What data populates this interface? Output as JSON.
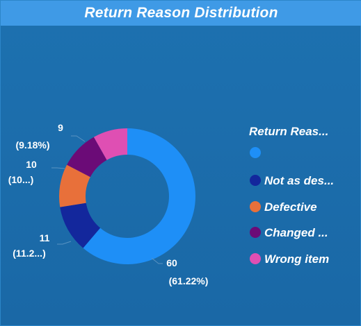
{
  "title": "Return Reason Distribution",
  "colors": {
    "background": "#1b6aa8",
    "title_bar": "#3f9ae6"
  },
  "chart_data": {
    "type": "pie",
    "donut": true,
    "legend_title": "Return Reas...",
    "legend_position": "right",
    "slices": [
      {
        "legend_label": "",
        "value": 60,
        "percent_label": "(61.22%)",
        "color": "#1e8ff7"
      },
      {
        "legend_label": "Not as des...",
        "value": 11,
        "percent_label": "(11.2...)",
        "color": "#13279c"
      },
      {
        "legend_label": "Defective",
        "value": 10,
        "percent_label": "(10...)",
        "color": "#e8703a"
      },
      {
        "legend_label": "Changed ...",
        "value": 9,
        "percent_label": "(9.18%)",
        "color": "#6b0b77"
      },
      {
        "legend_label": "Wrong item",
        "value": 8,
        "percent_label": "",
        "color": "#df4fb3"
      }
    ]
  }
}
